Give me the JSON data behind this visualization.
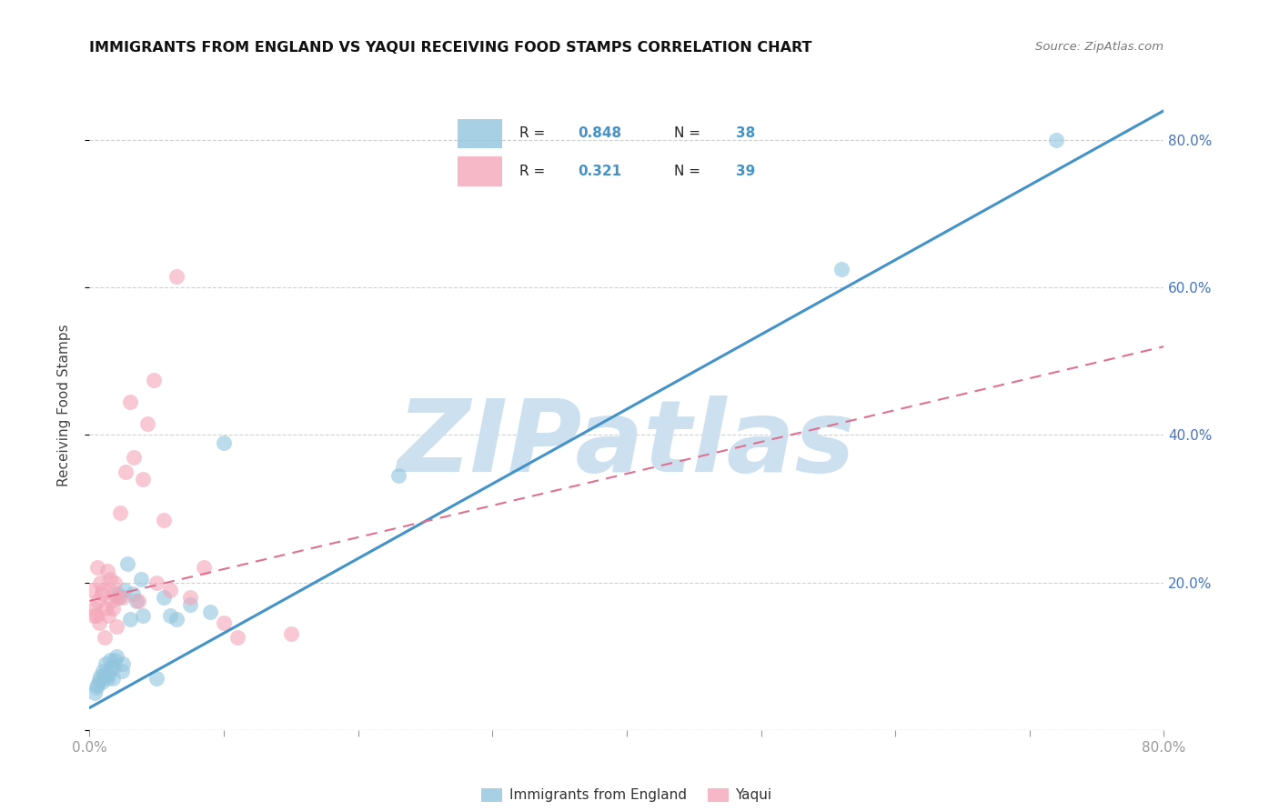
{
  "title": "IMMIGRANTS FROM ENGLAND VS YAQUI RECEIVING FOOD STAMPS CORRELATION CHART",
  "source": "Source: ZipAtlas.com",
  "ylabel": "Receiving Food Stamps",
  "legend_label1": "Immigrants from England",
  "legend_label2": "Yaqui",
  "R1": 0.848,
  "N1": 38,
  "R2": 0.321,
  "N2": 39,
  "color1": "#92c5de",
  "color2": "#f4a6b8",
  "line_color1": "#4393c8",
  "line_color2": "#e07090",
  "watermark": "ZIPatlas",
  "watermark_color": "#cce0f0",
  "xlim": [
    0.0,
    0.8
  ],
  "ylim": [
    0.0,
    0.88
  ],
  "xtick_positions": [
    0.0,
    0.1,
    0.2,
    0.3,
    0.4,
    0.5,
    0.6,
    0.7,
    0.8
  ],
  "xtick_labels_show": [
    0.0,
    0.8
  ],
  "yticks": [
    0.0,
    0.2,
    0.4,
    0.6,
    0.8
  ],
  "blue_scatter_x": [
    0.004,
    0.005,
    0.006,
    0.007,
    0.008,
    0.009,
    0.01,
    0.011,
    0.012,
    0.013,
    0.014,
    0.015,
    0.016,
    0.017,
    0.018,
    0.019,
    0.02,
    0.021,
    0.022,
    0.024,
    0.025,
    0.026,
    0.028,
    0.03,
    0.032,
    0.035,
    0.038,
    0.04,
    0.05,
    0.055,
    0.06,
    0.065,
    0.075,
    0.09,
    0.1,
    0.23,
    0.56,
    0.72
  ],
  "blue_scatter_y": [
    0.05,
    0.058,
    0.062,
    0.068,
    0.072,
    0.065,
    0.08,
    0.075,
    0.09,
    0.07,
    0.075,
    0.095,
    0.085,
    0.07,
    0.085,
    0.095,
    0.1,
    0.185,
    0.18,
    0.08,
    0.09,
    0.19,
    0.225,
    0.15,
    0.185,
    0.175,
    0.205,
    0.155,
    0.07,
    0.18,
    0.155,
    0.15,
    0.17,
    0.16,
    0.39,
    0.345,
    0.625,
    0.8
  ],
  "pink_scatter_x": [
    0.003,
    0.004,
    0.005,
    0.006,
    0.007,
    0.008,
    0.009,
    0.01,
    0.011,
    0.012,
    0.013,
    0.014,
    0.015,
    0.016,
    0.017,
    0.018,
    0.019,
    0.02,
    0.021,
    0.023,
    0.025,
    0.027,
    0.03,
    0.033,
    0.036,
    0.04,
    0.043,
    0.048,
    0.05,
    0.055,
    0.06,
    0.065,
    0.075,
    0.085,
    0.1,
    0.11,
    0.15,
    0.002,
    0.006
  ],
  "pink_scatter_y": [
    0.155,
    0.165,
    0.155,
    0.175,
    0.145,
    0.2,
    0.185,
    0.19,
    0.125,
    0.165,
    0.215,
    0.155,
    0.205,
    0.175,
    0.165,
    0.185,
    0.2,
    0.14,
    0.18,
    0.295,
    0.18,
    0.35,
    0.445,
    0.37,
    0.175,
    0.34,
    0.415,
    0.475,
    0.2,
    0.285,
    0.19,
    0.615,
    0.18,
    0.22,
    0.145,
    0.125,
    0.13,
    0.19,
    0.22
  ],
  "blue_line_x": [
    0.0,
    0.8
  ],
  "blue_line_y": [
    0.03,
    0.84
  ],
  "pink_line_x": [
    0.0,
    0.8
  ],
  "pink_line_y": [
    0.175,
    0.52
  ],
  "background_color": "#ffffff",
  "grid_color": "#d0d0d0",
  "title_fontsize": 11.5,
  "tick_label_color": "#4472c4",
  "right_tick_color": "#4472c4",
  "legend_box_color": "#f0f4f8",
  "legend_border_color": "#c0c8d0"
}
